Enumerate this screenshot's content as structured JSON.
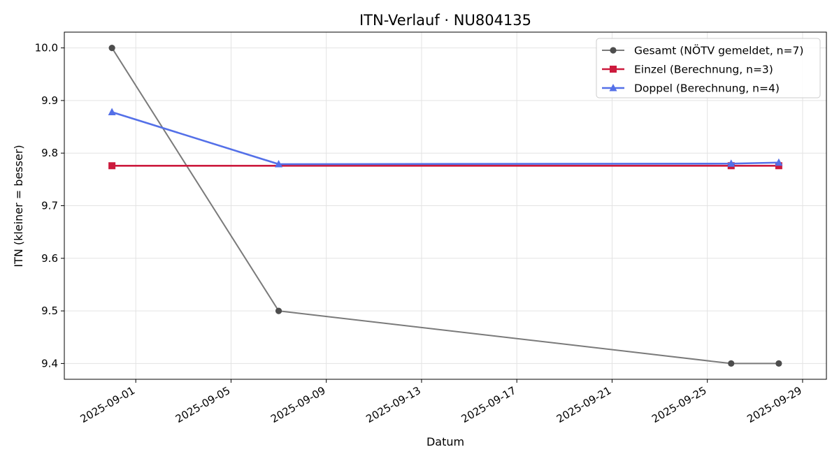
{
  "chart_data": {
    "type": "line",
    "title": "ITN-Verlauf · NU804135",
    "xlabel": "Datum",
    "ylabel": "ITN  (kleiner = besser)",
    "x_axis_type": "date",
    "xlim": [
      "2025-08-29",
      "2025-09-30"
    ],
    "ylim": [
      9.37,
      10.03
    ],
    "x_ticks": [
      "2025-09-01",
      "2025-09-05",
      "2025-09-09",
      "2025-09-13",
      "2025-09-17",
      "2025-09-21",
      "2025-09-25",
      "2025-09-29"
    ],
    "y_ticks": [
      9.4,
      9.5,
      9.6,
      9.7,
      9.8,
      9.9,
      10.0
    ],
    "y_tick_labels": [
      "9.4",
      "9.5",
      "9.6",
      "9.7",
      "9.8",
      "9.9",
      "10.0"
    ],
    "grid": true,
    "legend_position": "upper right",
    "series": [
      {
        "name": "Gesamt (NÖTV gemeldet, n=7)",
        "color": "#7a7a7a",
        "marker": "circle",
        "marker_color": "#4d4d4d",
        "x": [
          "2025-08-31",
          "2025-09-07",
          "2025-09-26",
          "2025-09-28"
        ],
        "y": [
          10.0,
          9.5,
          9.4,
          9.4
        ]
      },
      {
        "name": "Einzel (Berechnung, n=3)",
        "color": "#cc1a3d",
        "marker": "square",
        "marker_color": "#cc1a3d",
        "x": [
          "2025-08-31",
          "2025-09-26",
          "2025-09-28"
        ],
        "y": [
          9.776,
          9.776,
          9.776
        ]
      },
      {
        "name": "Doppel (Berechnung, n=4)",
        "color": "#5470e8",
        "marker": "triangle",
        "marker_color": "#5470e8",
        "x": [
          "2025-08-31",
          "2025-09-07",
          "2025-09-26",
          "2025-09-28"
        ],
        "y": [
          9.878,
          9.779,
          9.78,
          9.782
        ]
      }
    ]
  }
}
